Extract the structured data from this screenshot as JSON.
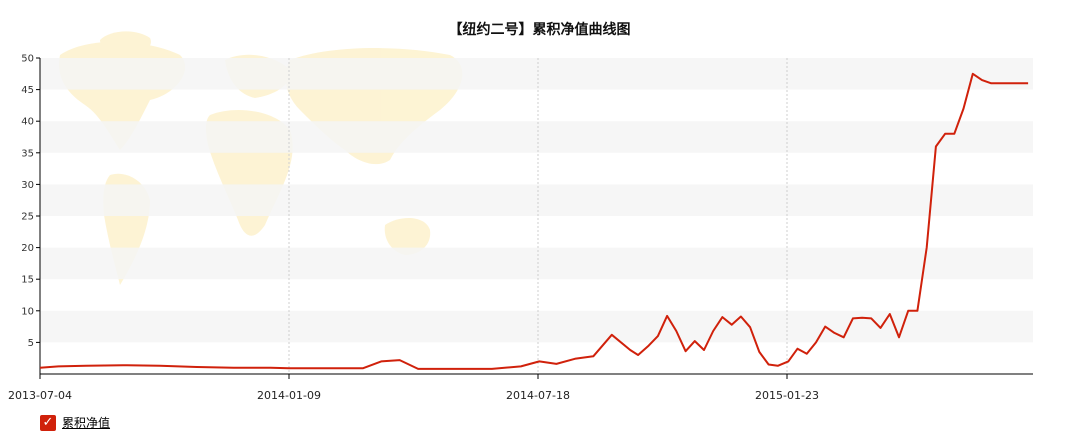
{
  "chart_data": {
    "type": "line",
    "title": "【纽约二号】累积净值曲线图",
    "xlabel": "",
    "ylabel": "",
    "ylim": [
      0,
      50
    ],
    "y_ticks": [
      5,
      10,
      15,
      20,
      25,
      30,
      35,
      40,
      45,
      50
    ],
    "x_tick_labels": [
      "2013-07-04",
      "2014-01-09",
      "2014-07-18",
      "2015-01-23"
    ],
    "grid": "vertical dotted lines at x ticks, alternating horizontal bands",
    "legend_position": "bottom-left",
    "series": [
      {
        "name": "累积净值",
        "color": "#d0210b",
        "x": [
          "2013-07-04",
          "2013-07-18",
          "2013-08-08",
          "2013-09-05",
          "2013-10-03",
          "2013-10-31",
          "2013-11-28",
          "2013-12-26",
          "2014-01-09",
          "2014-02-06",
          "2014-03-06",
          "2014-03-20",
          "2014-04-03",
          "2014-04-17",
          "2014-05-15",
          "2014-06-12",
          "2014-07-04",
          "2014-07-18",
          "2014-07-31",
          "2014-08-14",
          "2014-08-28",
          "2014-09-11",
          "2014-09-25",
          "2014-10-01",
          "2014-10-09",
          "2014-10-16",
          "2014-10-23",
          "2014-10-30",
          "2014-11-06",
          "2014-11-13",
          "2014-11-20",
          "2014-11-27",
          "2014-12-04",
          "2014-12-11",
          "2014-12-18",
          "2014-12-25",
          "2015-01-01",
          "2015-01-08",
          "2015-01-15",
          "2015-01-23",
          "2015-01-30",
          "2015-02-06",
          "2015-02-13",
          "2015-02-20",
          "2015-02-27",
          "2015-03-06",
          "2015-03-13",
          "2015-03-20",
          "2015-03-27",
          "2015-04-03",
          "2015-04-10",
          "2015-04-17",
          "2015-04-24",
          "2015-05-01",
          "2015-05-08",
          "2015-05-15",
          "2015-05-22",
          "2015-05-29",
          "2015-06-05",
          "2015-06-12",
          "2015-06-19",
          "2015-06-26",
          "2015-07-03",
          "2015-07-10",
          "2015-07-17",
          "2015-07-24",
          "2015-07-31",
          "2015-08-07"
        ],
        "values": [
          1.0,
          1.2,
          1.3,
          1.4,
          1.3,
          1.1,
          1.0,
          1.0,
          0.9,
          0.9,
          0.9,
          2.0,
          2.2,
          0.8,
          0.8,
          0.8,
          1.2,
          2.0,
          1.6,
          2.4,
          2.8,
          6.2,
          3.8,
          3.0,
          4.5,
          6.0,
          9.2,
          6.8,
          3.6,
          5.2,
          3.8,
          6.8,
          9.0,
          7.8,
          9.1,
          7.4,
          3.5,
          1.5,
          1.3,
          2.0,
          4.0,
          3.2,
          5.0,
          7.5,
          6.5,
          5.8,
          8.8,
          8.9,
          8.8,
          7.3,
          9.5,
          5.8,
          10.0,
          10.0,
          20.0,
          36.0,
          38.0,
          38.0,
          42.0,
          47.5,
          46.5,
          46.0,
          46.0,
          46.0,
          46.0,
          46.0,
          46.0,
          46.0
        ]
      }
    ]
  },
  "legend": {
    "label": "累积净值",
    "check": "✓"
  }
}
